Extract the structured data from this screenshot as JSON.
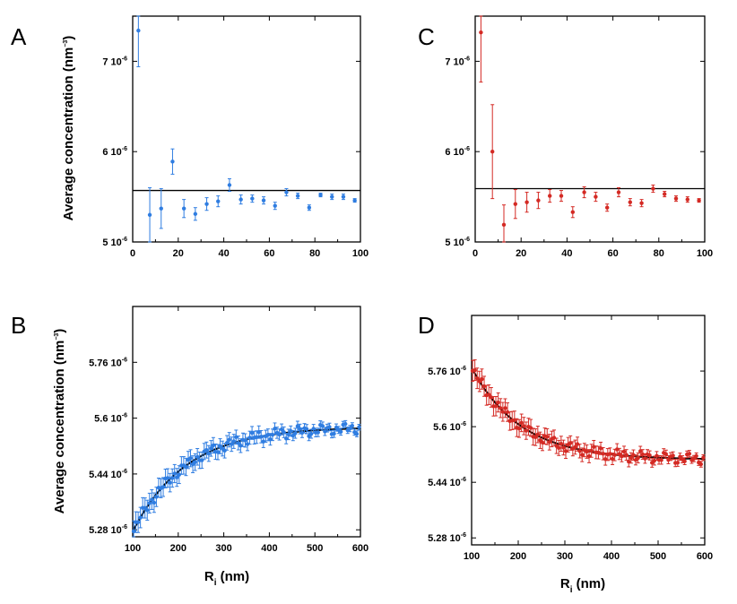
{
  "figure": {
    "ylabel": "Average concentration (nm",
    "ylabel_exp": "−3",
    "ylabel_close": ")",
    "xlabel_main": "R",
    "xlabel_sub": "i",
    "xlabel_unit": " (nm)"
  },
  "colors": {
    "blue": "#2f7de1",
    "red": "#d42a24",
    "fit": "#000000",
    "frame": "#000000"
  },
  "chart_data": [
    {
      "panel": "A",
      "type": "scatter",
      "color": "blue",
      "xlim": [
        0,
        100
      ],
      "ylim": [
        5.0,
        7.5
      ],
      "xticks": [
        0,
        20,
        40,
        60,
        80,
        100
      ],
      "yticks": [
        {
          "v": 5.0,
          "m": "5",
          "e": "-6"
        },
        {
          "v": 6.0,
          "m": "6",
          "e": "-6"
        },
        {
          "v": 7.0,
          "m": "7",
          "e": "-6"
        }
      ],
      "x_ticklabels_shown": true,
      "ylabel_shown": true,
      "xlabel_shown": false,
      "hline": 5.57,
      "points": [
        [
          2.5,
          7.34,
          0.4
        ],
        [
          7.5,
          5.3,
          0.3
        ],
        [
          12.5,
          5.37,
          0.22
        ],
        [
          17.5,
          5.89,
          0.14
        ],
        [
          22.5,
          5.37,
          0.1
        ],
        [
          27.5,
          5.31,
          0.07
        ],
        [
          32.5,
          5.42,
          0.07
        ],
        [
          37.5,
          5.45,
          0.06
        ],
        [
          42.5,
          5.63,
          0.07
        ],
        [
          47.5,
          5.47,
          0.05
        ],
        [
          52.5,
          5.48,
          0.04
        ],
        [
          57.5,
          5.46,
          0.04
        ],
        [
          62.5,
          5.4,
          0.04
        ],
        [
          67.5,
          5.55,
          0.04
        ],
        [
          72.5,
          5.51,
          0.03
        ],
        [
          77.5,
          5.38,
          0.03
        ],
        [
          82.5,
          5.52,
          0.02
        ],
        [
          87.5,
          5.5,
          0.03
        ],
        [
          92.5,
          5.5,
          0.03
        ],
        [
          97.5,
          5.46,
          0.02
        ]
      ]
    },
    {
      "panel": "C",
      "type": "scatter",
      "color": "red",
      "xlim": [
        0,
        100
      ],
      "ylim": [
        5.0,
        7.5
      ],
      "xticks": [
        0,
        20,
        40,
        60,
        80,
        100
      ],
      "yticks": [
        {
          "v": 5.0,
          "m": "5",
          "e": "-6"
        },
        {
          "v": 6.0,
          "m": "6",
          "e": "-6"
        },
        {
          "v": 7.0,
          "m": "7",
          "e": "-6"
        }
      ],
      "x_ticklabels_shown": true,
      "ylabel_shown": false,
      "xlabel_shown": false,
      "hline": 5.59,
      "points": [
        [
          2.5,
          7.32,
          0.55
        ],
        [
          7.5,
          6.0,
          0.52
        ],
        [
          12.5,
          5.19,
          0.22
        ],
        [
          17.5,
          5.42,
          0.16
        ],
        [
          22.5,
          5.44,
          0.11
        ],
        [
          27.5,
          5.46,
          0.09
        ],
        [
          32.5,
          5.51,
          0.07
        ],
        [
          37.5,
          5.51,
          0.06
        ],
        [
          42.5,
          5.33,
          0.06
        ],
        [
          47.5,
          5.55,
          0.06
        ],
        [
          52.5,
          5.5,
          0.05
        ],
        [
          57.5,
          5.38,
          0.04
        ],
        [
          62.5,
          5.55,
          0.05
        ],
        [
          67.5,
          5.44,
          0.04
        ],
        [
          72.5,
          5.43,
          0.04
        ],
        [
          77.5,
          5.59,
          0.04
        ],
        [
          82.5,
          5.53,
          0.03
        ],
        [
          87.5,
          5.48,
          0.03
        ],
        [
          92.5,
          5.47,
          0.03
        ],
        [
          97.5,
          5.46,
          0.02
        ]
      ]
    },
    {
      "panel": "B",
      "type": "scatter",
      "color": "blue",
      "xlim": [
        100,
        600
      ],
      "ylim": [
        5.26,
        5.92
      ],
      "xticks": [
        100,
        200,
        300,
        400,
        500,
        600
      ],
      "yticks": [
        {
          "v": 5.28,
          "m": "5.28",
          "e": "-6"
        },
        {
          "v": 5.44,
          "m": "5.44",
          "e": "-6"
        },
        {
          "v": 5.6,
          "m": "5.6",
          "e": "-6"
        },
        {
          "v": 5.76,
          "m": "5.76",
          "e": "-6"
        }
      ],
      "x_ticklabels_shown": true,
      "ylabel_shown": true,
      "xlabel_shown": true,
      "fit": {
        "a": 5.575,
        "b": -0.3,
        "k": 0.0085,
        "x0": 100
      },
      "noise_amp": 0.018,
      "err_start": 0.03,
      "err_end": 0.008,
      "step": 5
    },
    {
      "panel": "D",
      "type": "scatter",
      "color": "red",
      "xlim": [
        100,
        600
      ],
      "ylim": [
        5.26,
        5.92
      ],
      "xticks": [
        100,
        200,
        300,
        400,
        500,
        600
      ],
      "yticks": [
        {
          "v": 5.28,
          "m": "5.28",
          "e": "-6"
        },
        {
          "v": 5.44,
          "m": "5.44",
          "e": "-6"
        },
        {
          "v": 5.6,
          "m": "5.6",
          "e": "-6"
        },
        {
          "v": 5.76,
          "m": "5.76",
          "e": "-6"
        }
      ],
      "x_ticklabels_shown": true,
      "ylabel_shown": false,
      "xlabel_shown": true,
      "fit": {
        "a": 5.505,
        "b": 0.265,
        "k": 0.0095,
        "x0": 100
      },
      "noise_amp": 0.018,
      "err_start": 0.03,
      "err_end": 0.008,
      "step": 5
    }
  ]
}
